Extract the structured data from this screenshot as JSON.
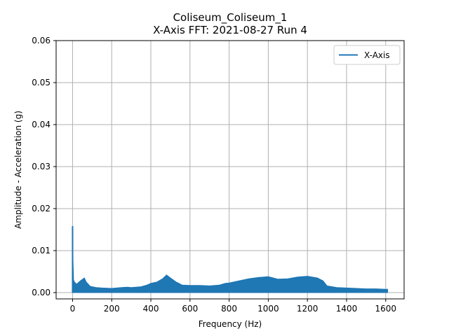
{
  "chart_data": {
    "type": "line",
    "title": "Coliseum_Coliseum_1",
    "subtitle": "X-Axis FFT: 2021-08-27 Run 4",
    "xlabel": "Frequency (Hz)",
    "ylabel": "Amplitude - Acceleration (g)",
    "xlim": [
      -84,
      1694
    ],
    "ylim": [
      -0.0015,
      0.06
    ],
    "x_ticks": [
      0,
      200,
      400,
      600,
      800,
      1000,
      1200,
      1400,
      1600
    ],
    "y_ticks": [
      0.0,
      0.01,
      0.02,
      0.03,
      0.04,
      0.05,
      0.06
    ],
    "x_tick_labels": [
      "0",
      "200",
      "400",
      "600",
      "800",
      "1000",
      "1200",
      "1400",
      "1600"
    ],
    "y_tick_labels": [
      "0.00",
      "0.01",
      "0.02",
      "0.03",
      "0.04",
      "0.05",
      "0.06"
    ],
    "grid": true,
    "legend_position": "upper-right",
    "series": [
      {
        "name": "X-Axis",
        "color": "#1f77b4",
        "envelope": {
          "x": [
            0,
            1,
            2,
            5,
            10,
            20,
            40,
            55,
            60,
            70,
            90,
            120,
            150,
            200,
            250,
            280,
            300,
            350,
            380,
            400,
            430,
            460,
            480,
            500,
            530,
            560,
            600,
            650,
            700,
            750,
            780,
            800,
            850,
            900,
            950,
            1000,
            1050,
            1100,
            1150,
            1200,
            1250,
            1280,
            1300,
            1350,
            1400,
            1450,
            1500,
            1550,
            1600,
            1610
          ],
          "max": [
            0.0158,
            0.0158,
            0.008,
            0.003,
            0.0025,
            0.002,
            0.0028,
            0.0033,
            0.0035,
            0.0025,
            0.0015,
            0.0012,
            0.0011,
            0.001,
            0.0012,
            0.0013,
            0.0012,
            0.0014,
            0.0018,
            0.0022,
            0.0025,
            0.0033,
            0.0042,
            0.0035,
            0.0025,
            0.0018,
            0.0017,
            0.0017,
            0.0016,
            0.0018,
            0.0022,
            0.0023,
            0.0028,
            0.0033,
            0.0036,
            0.0038,
            0.0032,
            0.0033,
            0.0037,
            0.0039,
            0.0035,
            0.0028,
            0.0016,
            0.0012,
            0.0011,
            0.001,
            0.0009,
            0.0009,
            0.0008,
            0.0008
          ],
          "min": [
            0.0,
            0.0,
            0.0,
            0.0,
            0.0,
            0.0,
            0.0,
            0.0,
            0.0,
            0.0,
            0.0,
            0.0,
            0.0,
            0.0,
            0.0,
            0.0,
            0.0,
            0.0,
            0.0,
            0.0,
            0.0,
            0.0,
            0.0,
            0.0,
            0.0,
            0.0,
            0.0,
            0.0,
            0.0,
            0.0,
            0.0,
            0.0,
            0.0,
            0.0,
            0.0,
            0.0,
            0.0,
            0.0,
            0.0,
            0.0,
            0.0,
            0.0,
            0.0,
            0.0,
            0.0,
            0.0,
            0.0,
            0.0,
            0.0,
            0.0
          ]
        }
      }
    ]
  }
}
